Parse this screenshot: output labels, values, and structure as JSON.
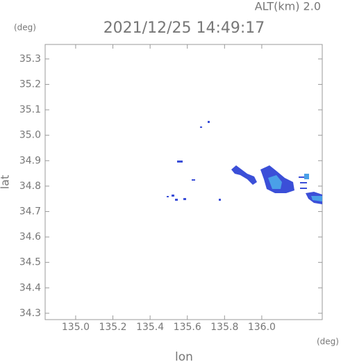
{
  "chart_data": {
    "type": "scatter",
    "header": "ALT(km) 2.0",
    "title": "2021/12/25 14:49:17",
    "x_label": "lon",
    "y_label": "lat",
    "x_unit": "(deg)",
    "y_unit": "(deg)",
    "xlim": [
      134.836,
      136.325
    ],
    "ylim": [
      34.275,
      35.357
    ],
    "xticks": [
      {
        "value": 135.0,
        "label": "135.0"
      },
      135.2,
      135.4,
      135.6,
      135.8,
      {
        "value": 136.0,
        "label": "136.0"
      }
    ],
    "yticks": [
      34.3,
      34.4,
      34.5,
      34.6,
      34.7,
      34.8,
      34.9,
      {
        "value": 35.0,
        "label": "35.0"
      },
      35.1,
      35.2,
      35.3
    ]
  }
}
